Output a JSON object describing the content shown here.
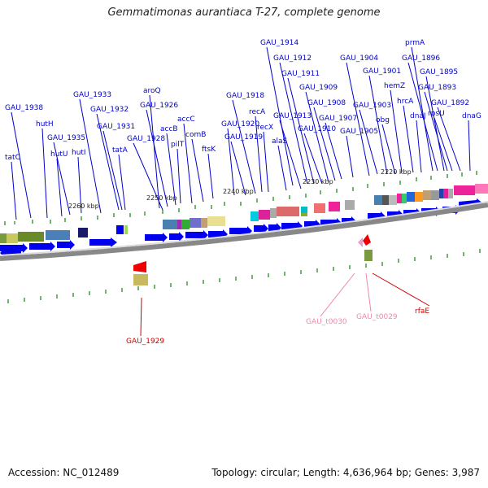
{
  "title": "Gemmatimonas aurantiaca T-27, complete genome",
  "footer": {
    "accession": "Accession: NC_012489",
    "summary": "Topology: circular; Length: 4,636,964 bp; Genes: 3,987"
  },
  "colors": {
    "gene_label": "#0000cc",
    "rna_label": "#cc0000",
    "trna_label": "#ee88aa",
    "cds_arrow": "#0000ee",
    "tick": "#2a8a2a",
    "backbone": "#888888"
  },
  "scale_labels": [
    "2260 kbp",
    "2250 kbp",
    "2240 kbp",
    "2230 kbp",
    "2220 kbp"
  ],
  "top_genes": [
    "tatC",
    "GAU_1938",
    "hutH",
    "hutU",
    "GAU_1935",
    "hutI",
    "GAU_1933",
    "GAU_1932",
    "GAU_1931",
    "tatA",
    "GAU_1928",
    "aroQ",
    "GAU_1926",
    "accB",
    "pilT",
    "accC",
    "comB",
    "ftsK",
    "GAU_1920",
    "GAU_1919",
    "GAU_1918",
    "recA",
    "recX",
    "alaS",
    "GAU_1914",
    "GAU_1913",
    "GAU_1912",
    "GAU_1911",
    "GAU_1910",
    "GAU_1909",
    "GAU_1908",
    "GAU_1907",
    "GAU_1905",
    "GAU_1904",
    "GAU_1903",
    "GAU_1901",
    "obg",
    "hemZ",
    "hrcA",
    "dnaJ",
    "prmA",
    "GAU_1896",
    "GAU_1895",
    "GAU_1893",
    "rpsU",
    "GAU_1892",
    "dnaG"
  ],
  "bottom_genes": [
    "GAU_1929",
    "GAU_t0030",
    "GAU_t0029",
    "rfaE"
  ]
}
